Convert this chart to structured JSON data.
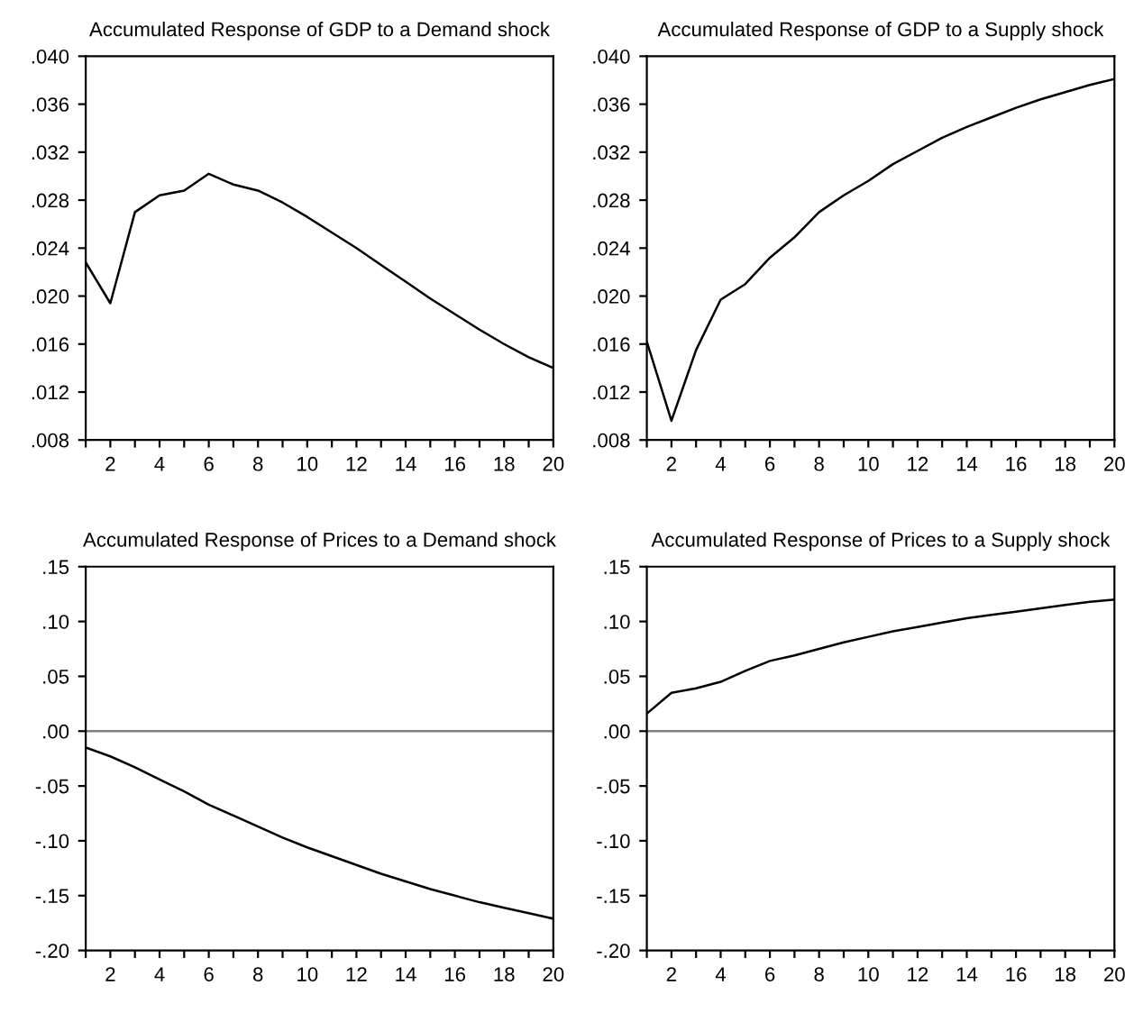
{
  "chart_data": [
    {
      "type": "line",
      "title": "Accumulated Response of GDP to a Demand shock",
      "x": [
        1,
        2,
        3,
        4,
        5,
        6,
        7,
        8,
        9,
        10,
        11,
        12,
        13,
        14,
        15,
        16,
        17,
        18,
        19,
        20
      ],
      "series": [
        {
          "color": "#000000",
          "values": [
            0.0228,
            0.0194,
            0.027,
            0.0284,
            0.0288,
            0.0302,
            0.0293,
            0.0288,
            0.0278,
            0.0266,
            0.0253,
            0.024,
            0.0226,
            0.0212,
            0.0198,
            0.0185,
            0.0172,
            0.016,
            0.0149,
            0.014
          ]
        }
      ],
      "xlim": [
        1,
        20
      ],
      "xticks": [
        {
          "value": 1,
          "label": null
        },
        2,
        {
          "value": 3,
          "label": null
        },
        4,
        {
          "value": 5,
          "label": null
        },
        6,
        {
          "value": 7,
          "label": null
        },
        8,
        {
          "value": 9,
          "label": null
        },
        10,
        {
          "value": 11,
          "label": null
        },
        12,
        {
          "value": 13,
          "label": null
        },
        14,
        {
          "value": 15,
          "label": null
        },
        16,
        {
          "value": 17,
          "label": null
        },
        18,
        {
          "value": 19,
          "label": null
        },
        20
      ],
      "ylim": [
        0.008,
        0.04
      ],
      "yticks": [
        {
          "value": 0.008,
          "label": ".008"
        },
        {
          "value": 0.012,
          "label": ".012"
        },
        {
          "value": 0.016,
          "label": ".016"
        },
        {
          "value": 0.02,
          "label": ".020"
        },
        {
          "value": 0.024,
          "label": ".024"
        },
        {
          "value": 0.028,
          "label": ".028"
        },
        {
          "value": 0.032,
          "label": ".032"
        },
        {
          "value": 0.036,
          "label": ".036"
        },
        {
          "value": 0.04,
          "label": ".040"
        }
      ],
      "grid": false,
      "legend": false
    },
    {
      "type": "line",
      "title": "Accumulated Response of GDP to a Supply shock",
      "x": [
        1,
        2,
        3,
        4,
        5,
        6,
        7,
        8,
        9,
        10,
        11,
        12,
        13,
        14,
        15,
        16,
        17,
        18,
        19,
        20
      ],
      "series": [
        {
          "color": "#000000",
          "values": [
            0.0162,
            0.0096,
            0.0155,
            0.0197,
            0.021,
            0.0232,
            0.0249,
            0.027,
            0.0284,
            0.0296,
            0.031,
            0.0321,
            0.0332,
            0.0341,
            0.0349,
            0.0357,
            0.0364,
            0.037,
            0.0376,
            0.0381
          ]
        }
      ],
      "xlim": [
        1,
        20
      ],
      "xticks": [
        {
          "value": 1,
          "label": null
        },
        2,
        {
          "value": 3,
          "label": null
        },
        4,
        {
          "value": 5,
          "label": null
        },
        6,
        {
          "value": 7,
          "label": null
        },
        8,
        {
          "value": 9,
          "label": null
        },
        10,
        {
          "value": 11,
          "label": null
        },
        12,
        {
          "value": 13,
          "label": null
        },
        14,
        {
          "value": 15,
          "label": null
        },
        16,
        {
          "value": 17,
          "label": null
        },
        18,
        {
          "value": 19,
          "label": null
        },
        20
      ],
      "ylim": [
        0.008,
        0.04
      ],
      "yticks": [
        {
          "value": 0.008,
          "label": ".008"
        },
        {
          "value": 0.012,
          "label": ".012"
        },
        {
          "value": 0.016,
          "label": ".016"
        },
        {
          "value": 0.02,
          "label": ".020"
        },
        {
          "value": 0.024,
          "label": ".024"
        },
        {
          "value": 0.028,
          "label": ".028"
        },
        {
          "value": 0.032,
          "label": ".032"
        },
        {
          "value": 0.036,
          "label": ".036"
        },
        {
          "value": 0.04,
          "label": ".040"
        }
      ],
      "grid": false,
      "legend": false
    },
    {
      "type": "line",
      "title": "Accumulated Response of Prices to a Demand shock",
      "x": [
        1,
        2,
        3,
        4,
        5,
        6,
        7,
        8,
        9,
        10,
        11,
        12,
        13,
        14,
        15,
        16,
        17,
        18,
        19,
        20
      ],
      "series": [
        {
          "color": "#000000",
          "values": [
            -0.015,
            -0.023,
            -0.033,
            -0.044,
            -0.055,
            -0.067,
            -0.077,
            -0.087,
            -0.097,
            -0.106,
            -0.114,
            -0.122,
            -0.13,
            -0.137,
            -0.144,
            -0.15,
            -0.156,
            -0.161,
            -0.166,
            -0.171
          ]
        }
      ],
      "xlim": [
        1,
        20
      ],
      "xticks": [
        {
          "value": 1,
          "label": null
        },
        2,
        {
          "value": 3,
          "label": null
        },
        4,
        {
          "value": 5,
          "label": null
        },
        6,
        {
          "value": 7,
          "label": null
        },
        8,
        {
          "value": 9,
          "label": null
        },
        10,
        {
          "value": 11,
          "label": null
        },
        12,
        {
          "value": 13,
          "label": null
        },
        14,
        {
          "value": 15,
          "label": null
        },
        16,
        {
          "value": 17,
          "label": null
        },
        18,
        {
          "value": 19,
          "label": null
        },
        20
      ],
      "ylim": [
        -0.2,
        0.15
      ],
      "yticks": [
        {
          "value": -0.2,
          "label": "-.20"
        },
        {
          "value": -0.15,
          "label": "-.15"
        },
        {
          "value": -0.1,
          "label": "-.10"
        },
        {
          "value": -0.05,
          "label": "-.05"
        },
        {
          "value": 0.0,
          "label": ".00"
        },
        {
          "value": 0.05,
          "label": ".05"
        },
        {
          "value": 0.1,
          "label": ".10"
        },
        {
          "value": 0.15,
          "label": ".15"
        }
      ],
      "ref_lines": [
        {
          "axis": "y",
          "value": 0,
          "color": "#808080"
        }
      ],
      "grid": false,
      "legend": false
    },
    {
      "type": "line",
      "title": "Accumulated Response of Prices to a Supply shock",
      "x": [
        1,
        2,
        3,
        4,
        5,
        6,
        7,
        8,
        9,
        10,
        11,
        12,
        13,
        14,
        15,
        16,
        17,
        18,
        19,
        20
      ],
      "series": [
        {
          "color": "#000000",
          "values": [
            0.016,
            0.035,
            0.039,
            0.045,
            0.055,
            0.064,
            0.069,
            0.075,
            0.081,
            0.086,
            0.091,
            0.095,
            0.099,
            0.103,
            0.106,
            0.109,
            0.112,
            0.115,
            0.118,
            0.12
          ]
        }
      ],
      "xlim": [
        1,
        20
      ],
      "xticks": [
        {
          "value": 1,
          "label": null
        },
        2,
        {
          "value": 3,
          "label": null
        },
        4,
        {
          "value": 5,
          "label": null
        },
        6,
        {
          "value": 7,
          "label": null
        },
        8,
        {
          "value": 9,
          "label": null
        },
        10,
        {
          "value": 11,
          "label": null
        },
        12,
        {
          "value": 13,
          "label": null
        },
        14,
        {
          "value": 15,
          "label": null
        },
        16,
        {
          "value": 17,
          "label": null
        },
        18,
        {
          "value": 19,
          "label": null
        },
        20
      ],
      "ylim": [
        -0.2,
        0.15
      ],
      "yticks": [
        {
          "value": -0.2,
          "label": "-.20"
        },
        {
          "value": -0.15,
          "label": "-.15"
        },
        {
          "value": -0.1,
          "label": "-.10"
        },
        {
          "value": -0.05,
          "label": "-.05"
        },
        {
          "value": 0.0,
          "label": ".00"
        },
        {
          "value": 0.05,
          "label": ".05"
        },
        {
          "value": 0.1,
          "label": ".10"
        },
        {
          "value": 0.15,
          "label": ".15"
        }
      ],
      "ref_lines": [
        {
          "axis": "y",
          "value": 0,
          "color": "#808080"
        }
      ],
      "grid": false,
      "legend": false
    }
  ]
}
